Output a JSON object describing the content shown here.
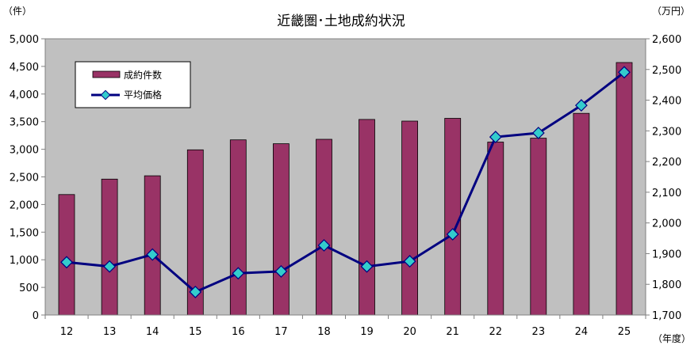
{
  "chart_data": {
    "type": "bar+line",
    "title": "近畿圏･土地成約状況",
    "left_unit": "（件）",
    "right_unit": "（万円）",
    "x_unit": "（年度）",
    "categories": [
      "12",
      "13",
      "14",
      "15",
      "16",
      "17",
      "18",
      "19",
      "20",
      "21",
      "22",
      "23",
      "24",
      "25"
    ],
    "y_left_lim": [
      0,
      5000
    ],
    "y_right_lim": [
      1700,
      2600
    ],
    "y_left_ticks": [
      "0",
      "500",
      "1,000",
      "1,500",
      "2,000",
      "2,500",
      "3,000",
      "3,500",
      "4,000",
      "4,500",
      "5,000"
    ],
    "y_right_ticks": [
      "1,700",
      "1,800",
      "1,900",
      "2,000",
      "2,100",
      "2,200",
      "2,300",
      "2,400",
      "2,500",
      "2,600"
    ],
    "series": [
      {
        "name": "成約件数",
        "axis": "left",
        "kind": "bar",
        "color": "#993366",
        "values": [
          2180,
          2460,
          2520,
          2990,
          3170,
          3100,
          3180,
          3540,
          3510,
          3560,
          3130,
          3200,
          3650,
          4570
        ]
      },
      {
        "name": "平均価格",
        "axis": "right",
        "kind": "line",
        "color": "#000080",
        "marker_color": "#33CCCC",
        "values": [
          1872,
          1858,
          1897,
          1775,
          1836,
          1842,
          1927,
          1858,
          1875,
          1963,
          2280,
          2293,
          2383,
          2491
        ]
      }
    ],
    "grid": false,
    "plot_background": "#C0C0C0",
    "legend_position": "top-left"
  }
}
